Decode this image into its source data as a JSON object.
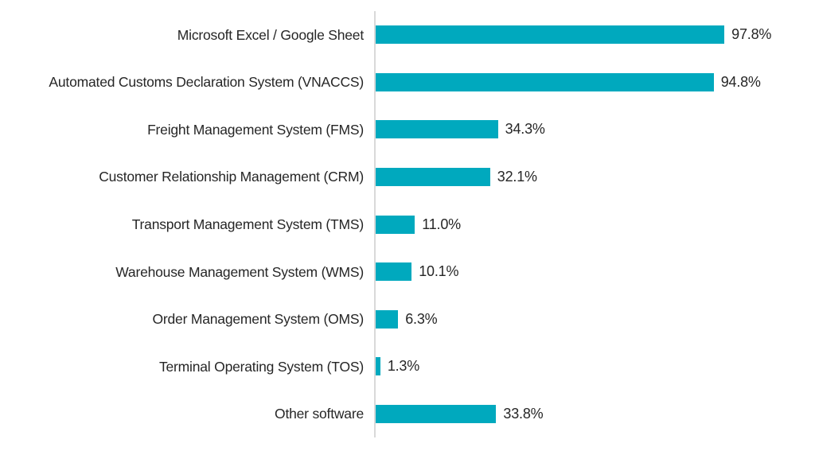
{
  "chart_data": {
    "type": "bar",
    "orientation": "horizontal",
    "title": "",
    "xlabel": "",
    "ylabel": "",
    "xlim": [
      0,
      100
    ],
    "grid": false,
    "legend": false,
    "categories": [
      "Microsoft Excel / Google Sheet",
      "Automated Customs Declaration System (VNACCS)",
      "Freight Management System (FMS)",
      "Customer Relationship Management (CRM)",
      "Transport Management System (TMS)",
      "Warehouse Management System (WMS)",
      "Order Management System (OMS)",
      "Terminal Operating System (TOS)",
      "Other software"
    ],
    "values": [
      97.8,
      94.8,
      34.3,
      32.1,
      11.0,
      10.1,
      6.3,
      1.3,
      33.8
    ],
    "value_labels": [
      "97.8%",
      "94.8%",
      "34.3%",
      "32.1%",
      "11.0%",
      "10.1%",
      "6.3%",
      "1.3%",
      "33.8%"
    ],
    "bar_color": "#00a9be",
    "axis_line_color": "#d9d9d9",
    "text_color": "#262626",
    "pixels_per_percent": 4.48
  }
}
